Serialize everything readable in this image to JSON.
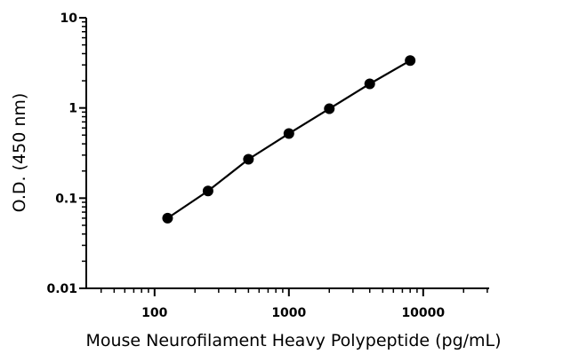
{
  "chart_data": {
    "type": "scatter",
    "xlabel": "Mouse Neurofilament Heavy Polypeptide (pg/mL)",
    "ylabel": "O.D. (450 nm)",
    "x_scale": "log",
    "y_scale": "log",
    "xlim": [
      31,
      31000
    ],
    "ylim": [
      0.01,
      10
    ],
    "x_ticks": [
      {
        "value": 100,
        "label": "100"
      },
      {
        "value": 1000,
        "label": "1000"
      },
      {
        "value": 10000,
        "label": "10000"
      }
    ],
    "y_ticks": [
      {
        "value": 0.01,
        "label": "0.01"
      },
      {
        "value": 0.1,
        "label": "0.1"
      },
      {
        "value": 1,
        "label": "1"
      },
      {
        "value": 10,
        "label": "10"
      }
    ],
    "grid": false,
    "series": [
      {
        "x": [
          125,
          250,
          500,
          1000,
          2000,
          4000,
          8000
        ],
        "y": [
          0.06,
          0.12,
          0.27,
          0.52,
          0.98,
          1.85,
          3.35
        ],
        "fit_line": true,
        "color": "#000000"
      }
    ]
  }
}
